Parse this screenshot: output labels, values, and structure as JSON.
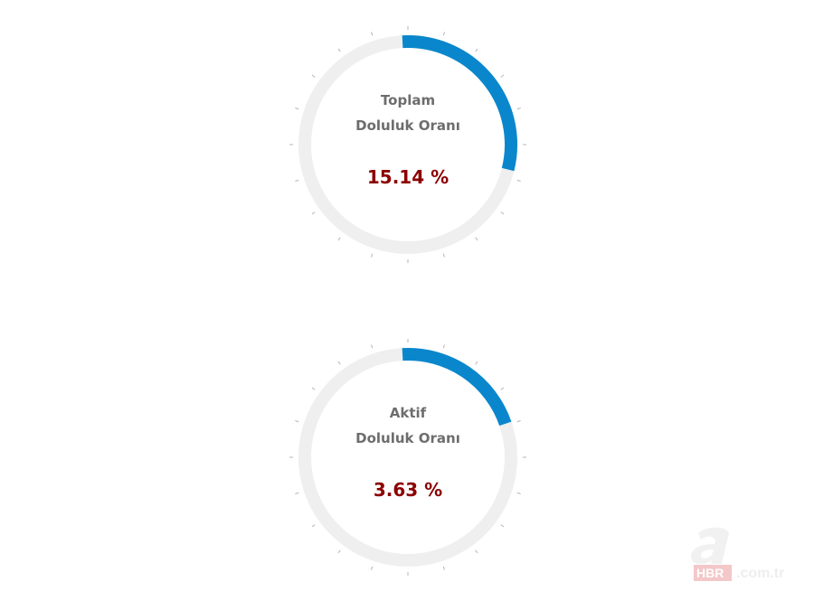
{
  "colors": {
    "fill": "#0a87cc",
    "track": "#efefef",
    "value": "#8b0000",
    "label": "#6d6d6d"
  },
  "gauges": [
    {
      "title_line1": "Toplam",
      "title_line2": "Doluluk Oranı",
      "value_text": "15.14 %",
      "value": 15.14
    },
    {
      "title_line1": "Aktif",
      "title_line2": "Doluluk Oranı",
      "value_text": "3.63 %",
      "value": 3.63
    }
  ],
  "watermark": {
    "text": "aHBR.com.tr"
  }
}
